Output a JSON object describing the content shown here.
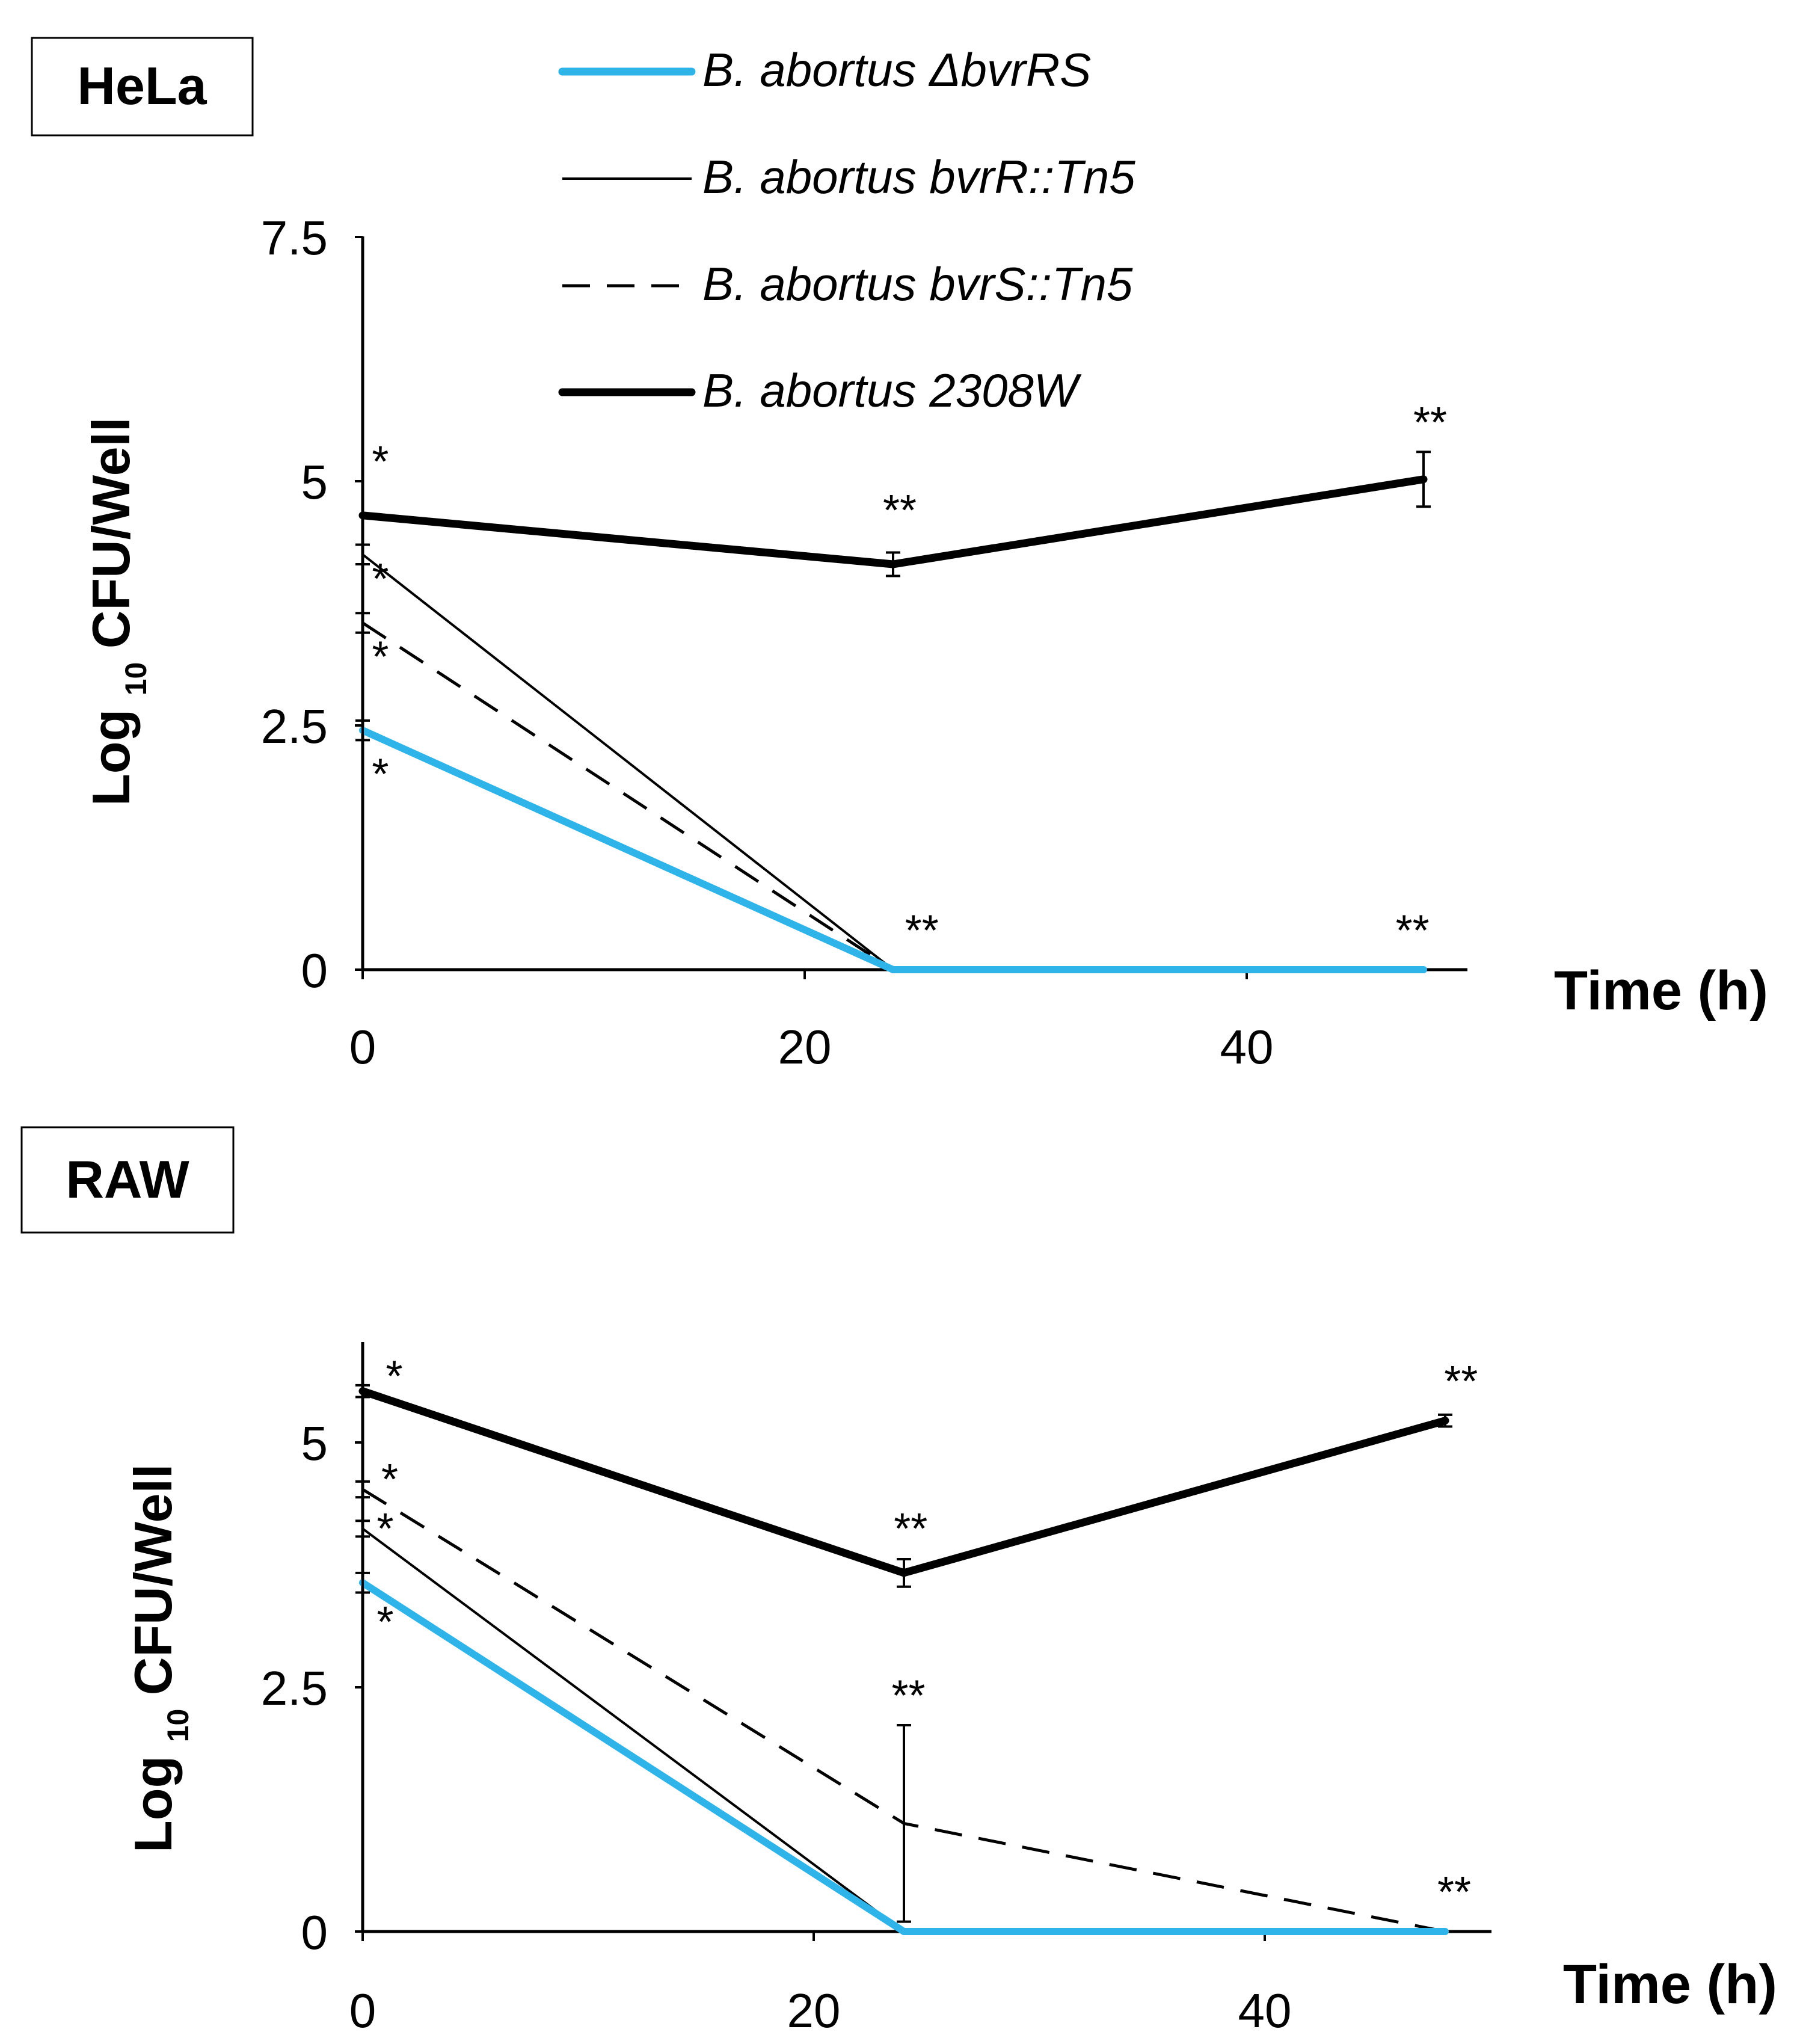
{
  "legend": [
    {
      "label": "B. abortus ΔbvrRS",
      "color": "#2EB4E8",
      "width": 12,
      "dash": ""
    },
    {
      "label": "B. abortus bvrR::Tn5",
      "color": "#000000",
      "width": 4,
      "dash": ""
    },
    {
      "label": "B. abortus bvrS::Tn5",
      "color": "#000000",
      "width": 5,
      "dash": "46,28"
    },
    {
      "label": "B. abortus 2308W",
      "color": "#000000",
      "width": 13,
      "dash": ""
    }
  ],
  "chart_data": [
    {
      "type": "line",
      "title": "HeLa",
      "xlabel": "Time (h)",
      "ylabel": {
        "prefix": "Log",
        "sub": "10",
        "suffix": "CFU/Well"
      },
      "x_ticks": [
        "0",
        "20",
        "40"
      ],
      "x_tick_values": [
        0,
        20,
        40
      ],
      "y_ticks": [
        "0",
        "2.5",
        "5",
        "7.5"
      ],
      "y_tick_values": [
        0,
        2.5,
        5,
        7.5
      ],
      "xlim": [
        0,
        50
      ],
      "ylim": [
        0,
        7.5
      ],
      "x": [
        0,
        24,
        48
      ],
      "series": [
        {
          "name": "B. abortus ΔbvrRS",
          "values": [
            2.45,
            0,
            0
          ],
          "errors": [
            0.1,
            0,
            0
          ]
        },
        {
          "name": "B. abortus bvrR::Tn5",
          "values": [
            4.25,
            0,
            0
          ],
          "errors": [
            0.1,
            0,
            0
          ]
        },
        {
          "name": "B. abortus bvrS::Tn5",
          "values": [
            3.55,
            0,
            0
          ],
          "errors": [
            0.1,
            0,
            0
          ]
        },
        {
          "name": "B. abortus 2308W",
          "values": [
            4.65,
            4.15,
            5.02
          ],
          "errors": [
            0,
            0.12,
            0.28
          ]
        }
      ],
      "annotations": [
        {
          "text": "*",
          "x": 0.8,
          "y": 5.05
        },
        {
          "text": "*",
          "x": 0.8,
          "y": 3.85
        },
        {
          "text": "*",
          "x": 0.8,
          "y": 3.05
        },
        {
          "text": "*",
          "x": 0.8,
          "y": 1.85
        },
        {
          "text": "**",
          "x": 24.3,
          "y": 4.55
        },
        {
          "text": "**",
          "x": 48.3,
          "y": 5.45
        },
        {
          "text": "**",
          "x": 25.3,
          "y": 0.25
        },
        {
          "text": "**",
          "x": 47.5,
          "y": 0.25
        }
      ]
    },
    {
      "type": "line",
      "title": "RAW",
      "xlabel": "Time (h)",
      "ylabel": {
        "prefix": "Log",
        "sub": "10",
        "suffix": "CFU/Well"
      },
      "x_ticks": [
        "0",
        "20",
        "40"
      ],
      "x_tick_values": [
        0,
        20,
        40
      ],
      "y_ticks": [
        "0",
        "2.5",
        "5"
      ],
      "y_tick_values": [
        0,
        2.5,
        5
      ],
      "xlim": [
        0,
        50
      ],
      "ylim": [
        0,
        6
      ],
      "x": [
        0,
        24,
        48
      ],
      "series": [
        {
          "name": "B. abortus ΔbvrRS",
          "values": [
            3.55,
            0,
            0
          ],
          "errors": [
            0.1,
            0,
            0
          ]
        },
        {
          "name": "B. abortus bvrR::Tn5",
          "values": [
            4.1,
            0,
            0
          ],
          "errors": [
            0.08,
            0,
            0
          ]
        },
        {
          "name": "B. abortus bvrS::Tn5",
          "values": [
            4.5,
            1.1,
            0
          ],
          "errors": [
            0.08,
            1.0,
            0
          ]
        },
        {
          "name": "B. abortus 2308W",
          "values": [
            5.5,
            3.65,
            5.2
          ],
          "errors": [
            0.06,
            0.14,
            0.06
          ]
        }
      ],
      "annotations": [
        {
          "text": "*",
          "x": 1.4,
          "y": 5.5
        },
        {
          "text": "*",
          "x": 1.2,
          "y": 4.45
        },
        {
          "text": "*",
          "x": 1.0,
          "y": 3.95
        },
        {
          "text": "*",
          "x": 1.0,
          "y": 3.0
        },
        {
          "text": "**",
          "x": 24.3,
          "y": 3.95
        },
        {
          "text": "**",
          "x": 48.7,
          "y": 5.45
        },
        {
          "text": "**",
          "x": 24.2,
          "y": 2.25
        },
        {
          "text": "**",
          "x": 48.4,
          "y": 0.25
        }
      ]
    }
  ]
}
